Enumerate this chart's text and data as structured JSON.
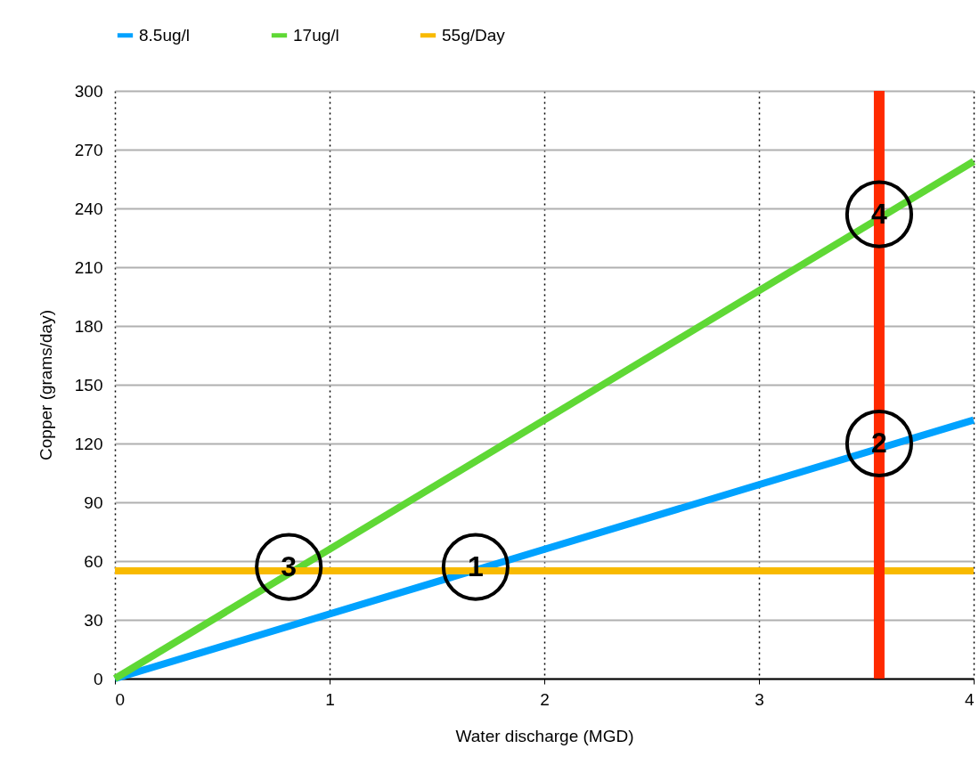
{
  "chart_data": {
    "type": "line",
    "xlabel": "Water discharge (MGD)",
    "ylabel": "Copper (grams/day)",
    "x": [
      0,
      4
    ],
    "series": [
      {
        "name": "8.5ug/l",
        "color": "#00a2ff",
        "values": [
          0,
          132
        ]
      },
      {
        "name": "17ug/l",
        "color": "#5fd835",
        "values": [
          0,
          264
        ]
      },
      {
        "name": "55g/Day",
        "color": "#f8ba00",
        "values": [
          55,
          55
        ]
      }
    ],
    "xlim": [
      0,
      4
    ],
    "xticks": [
      0,
      1,
      2,
      3,
      4
    ],
    "ylim": [
      0,
      300
    ],
    "yticks": [
      0,
      30,
      60,
      90,
      120,
      150,
      180,
      210,
      240,
      270,
      300
    ],
    "ref_lines": [
      {
        "axis": "x",
        "value": 3.56,
        "color": "#ff2a00"
      }
    ],
    "annotations": [
      {
        "text": "1",
        "x": 1.68,
        "y": 57
      },
      {
        "text": "2",
        "x": 3.56,
        "y": 120
      },
      {
        "text": "3",
        "x": 0.81,
        "y": 57
      },
      {
        "text": "4",
        "x": 3.56,
        "y": 237
      }
    ],
    "grid": true,
    "legend": "top",
    "marker": "none",
    "line_style": "solid"
  }
}
